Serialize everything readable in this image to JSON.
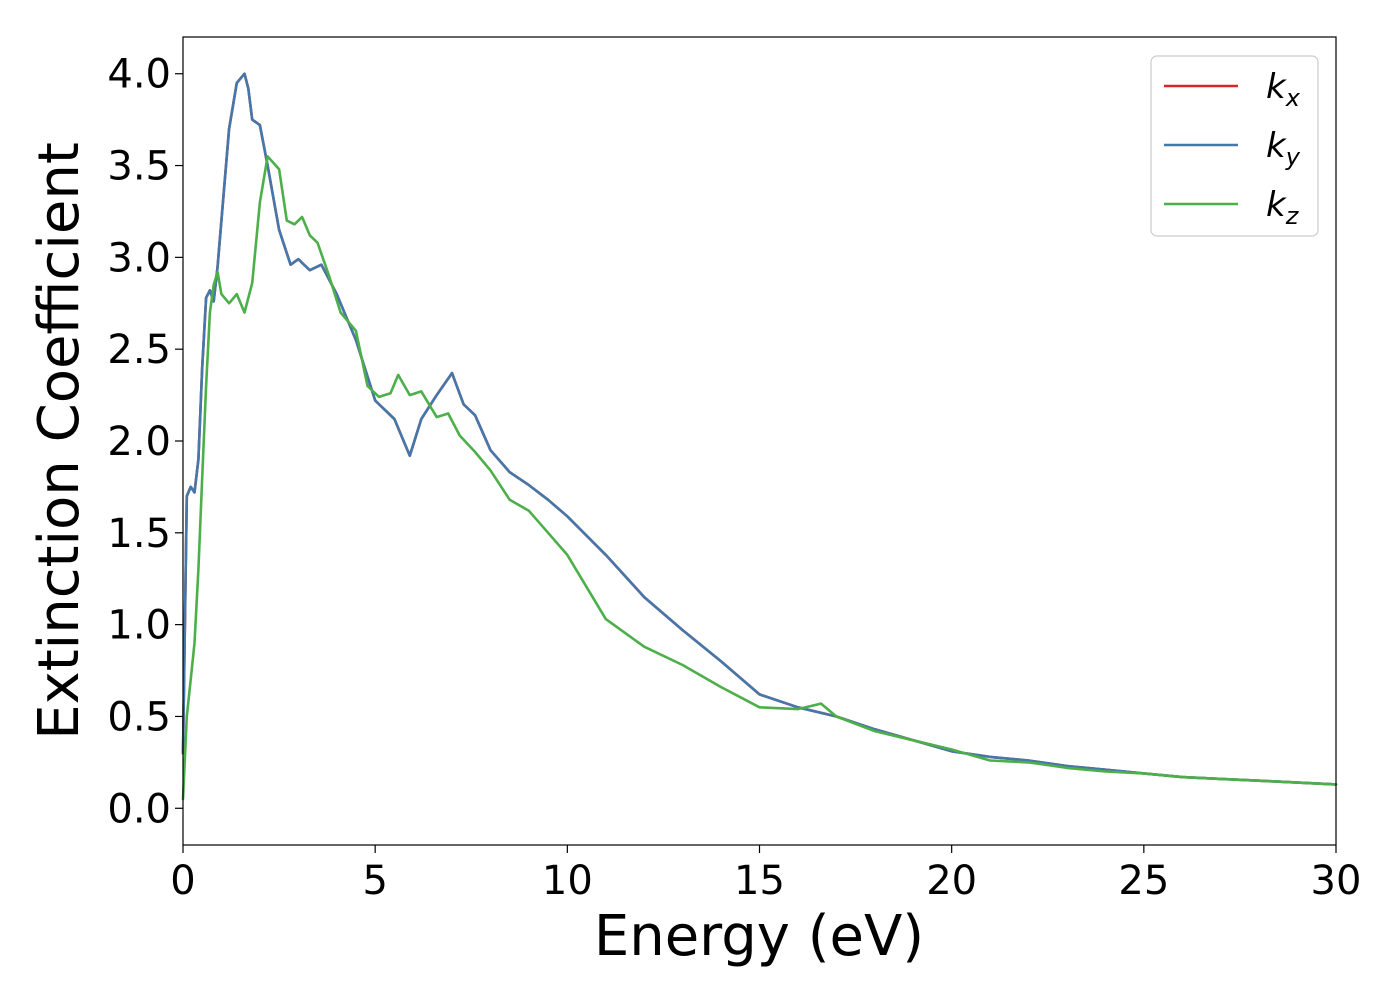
{
  "chart_data": {
    "type": "line",
    "xlabel": "Energy (eV)",
    "ylabel": "Extinction Coefficient",
    "xlim": [
      0,
      30
    ],
    "ylim": [
      -0.2,
      4.2
    ],
    "x_ticks": [
      "0",
      "5",
      "10",
      "15",
      "20",
      "25",
      "30"
    ],
    "y_ticks": [
      "0.0",
      "0.5",
      "1.0",
      "1.5",
      "2.0",
      "2.5",
      "3.0",
      "3.5",
      "4.0"
    ],
    "grid": false,
    "legend_position": "top-right",
    "series": [
      {
        "name": "k_x",
        "legend_base": "k",
        "legend_sub": "x",
        "color": "#d62728",
        "x": [
          0,
          0.1,
          0.2,
          0.3,
          0.4,
          0.5,
          0.6,
          0.7,
          0.8,
          0.9,
          1.0,
          1.2,
          1.4,
          1.6,
          1.7,
          1.8,
          2.0,
          2.2,
          2.5,
          2.8,
          3.0,
          3.3,
          3.6,
          4.0,
          4.5,
          5.0,
          5.5,
          5.9,
          6.2,
          6.6,
          7.0,
          7.3,
          7.6,
          8.0,
          8.5,
          9.0,
          9.5,
          10.0,
          11.0,
          12.0,
          13.0,
          14.0,
          15.0,
          16.0,
          17.0,
          18.0,
          19.0,
          20.0,
          21.0,
          22.0,
          23.0,
          24.0,
          25.0,
          26.0,
          27.0,
          28.0,
          29.0,
          30.0
        ],
        "values": [
          0.3,
          1.7,
          1.75,
          1.72,
          1.9,
          2.4,
          2.78,
          2.82,
          2.76,
          2.95,
          3.2,
          3.7,
          3.95,
          4.0,
          3.92,
          3.75,
          3.72,
          3.5,
          3.15,
          2.96,
          2.99,
          2.93,
          2.96,
          2.8,
          2.55,
          2.22,
          2.12,
          1.92,
          2.12,
          2.25,
          2.37,
          2.2,
          2.14,
          1.95,
          1.83,
          1.76,
          1.68,
          1.59,
          1.38,
          1.15,
          0.97,
          0.8,
          0.62,
          0.55,
          0.5,
          0.43,
          0.37,
          0.31,
          0.28,
          0.26,
          0.23,
          0.21,
          0.19,
          0.17,
          0.16,
          0.15,
          0.14,
          0.13
        ]
      },
      {
        "name": "k_y",
        "legend_base": "k",
        "legend_sub": "y",
        "color": "#4477aa",
        "x": [
          0,
          0.1,
          0.2,
          0.3,
          0.4,
          0.5,
          0.6,
          0.7,
          0.8,
          0.9,
          1.0,
          1.2,
          1.4,
          1.6,
          1.7,
          1.8,
          2.0,
          2.2,
          2.5,
          2.8,
          3.0,
          3.3,
          3.6,
          4.0,
          4.5,
          5.0,
          5.5,
          5.9,
          6.2,
          6.6,
          7.0,
          7.3,
          7.6,
          8.0,
          8.5,
          9.0,
          9.5,
          10.0,
          11.0,
          12.0,
          13.0,
          14.0,
          15.0,
          16.0,
          17.0,
          18.0,
          19.0,
          20.0,
          21.0,
          22.0,
          23.0,
          24.0,
          25.0,
          26.0,
          27.0,
          28.0,
          29.0,
          30.0
        ],
        "values": [
          0.3,
          1.7,
          1.75,
          1.72,
          1.9,
          2.4,
          2.78,
          2.82,
          2.76,
          2.95,
          3.2,
          3.7,
          3.95,
          4.0,
          3.92,
          3.75,
          3.72,
          3.5,
          3.15,
          2.96,
          2.99,
          2.93,
          2.96,
          2.8,
          2.55,
          2.22,
          2.12,
          1.92,
          2.12,
          2.25,
          2.37,
          2.2,
          2.14,
          1.95,
          1.83,
          1.76,
          1.68,
          1.59,
          1.38,
          1.15,
          0.97,
          0.8,
          0.62,
          0.55,
          0.5,
          0.43,
          0.37,
          0.31,
          0.28,
          0.26,
          0.23,
          0.21,
          0.19,
          0.17,
          0.16,
          0.15,
          0.14,
          0.13
        ]
      },
      {
        "name": "k_z",
        "legend_base": "k",
        "legend_sub": "z",
        "color": "#4daf4a",
        "x": [
          0,
          0.1,
          0.2,
          0.3,
          0.4,
          0.5,
          0.6,
          0.7,
          0.8,
          0.9,
          1.0,
          1.2,
          1.4,
          1.6,
          1.8,
          2.0,
          2.2,
          2.5,
          2.7,
          2.9,
          3.1,
          3.3,
          3.5,
          3.8,
          4.1,
          4.5,
          4.8,
          5.1,
          5.4,
          5.6,
          5.9,
          6.2,
          6.6,
          6.9,
          7.2,
          7.6,
          8.0,
          8.5,
          9.0,
          9.5,
          10.0,
          11.0,
          12.0,
          13.0,
          14.0,
          15.0,
          16.0,
          16.6,
          17.0,
          18.0,
          19.0,
          20.0,
          21.0,
          22.0,
          23.0,
          24.0,
          25.0,
          26.0,
          27.0,
          28.0,
          29.0,
          30.0
        ],
        "values": [
          0.05,
          0.5,
          0.7,
          0.9,
          1.3,
          1.8,
          2.3,
          2.7,
          2.85,
          2.92,
          2.8,
          2.75,
          2.8,
          2.7,
          2.86,
          3.3,
          3.55,
          3.48,
          3.2,
          3.18,
          3.22,
          3.12,
          3.08,
          2.9,
          2.7,
          2.6,
          2.3,
          2.24,
          2.26,
          2.36,
          2.25,
          2.27,
          2.13,
          2.15,
          2.03,
          1.94,
          1.84,
          1.68,
          1.62,
          1.5,
          1.38,
          1.03,
          0.88,
          0.78,
          0.66,
          0.55,
          0.54,
          0.57,
          0.5,
          0.42,
          0.37,
          0.32,
          0.26,
          0.25,
          0.22,
          0.2,
          0.19,
          0.17,
          0.16,
          0.15,
          0.14,
          0.13
        ]
      }
    ]
  }
}
